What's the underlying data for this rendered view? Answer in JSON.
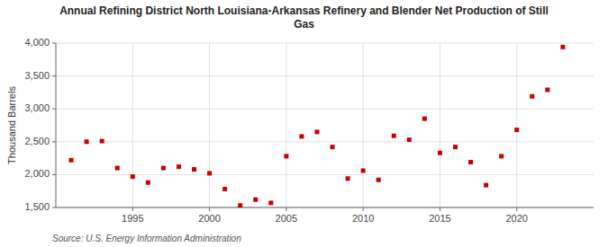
{
  "chart_data": {
    "type": "scatter",
    "title": "Annual Refining District North Louisiana-Arkansas Refinery and Blender Net Production of Still\nGas",
    "y_label": "Thousand Barrels",
    "source": "Source: U.S. Energy Information Administration",
    "color": "#cc0000",
    "marker": "square",
    "grid": true,
    "x": [
      1991,
      1992,
      1993,
      1994,
      1995,
      1996,
      1997,
      1998,
      1999,
      2000,
      2001,
      2002,
      2003,
      2004,
      2005,
      2006,
      2007,
      2008,
      2009,
      2010,
      2011,
      2012,
      2013,
      2014,
      2015,
      2016,
      2017,
      2018,
      2019,
      2020,
      2021,
      2022,
      2023
    ],
    "values": [
      2220,
      2500,
      2510,
      2100,
      1970,
      1880,
      2100,
      2120,
      2080,
      2020,
      1780,
      1530,
      1620,
      1570,
      2280,
      2580,
      2650,
      2420,
      1940,
      2060,
      1920,
      2590,
      2530,
      2850,
      2330,
      2420,
      2190,
      1840,
      2280,
      2680,
      3190,
      3290,
      3940
    ],
    "xlim": [
      1990,
      2025
    ],
    "xticks": [
      1995,
      2000,
      2005,
      2010,
      2015,
      2020
    ],
    "ylim": [
      1500,
      4000
    ],
    "yticks": [
      {
        "value": 1500,
        "label": "1,500"
      },
      {
        "value": 2000,
        "label": "2,000"
      },
      {
        "value": 2500,
        "label": "2,500"
      },
      {
        "value": 3000,
        "label": "3,000"
      },
      {
        "value": 3500,
        "label": "3,500"
      },
      {
        "value": 4000,
        "label": "4,000"
      }
    ]
  }
}
